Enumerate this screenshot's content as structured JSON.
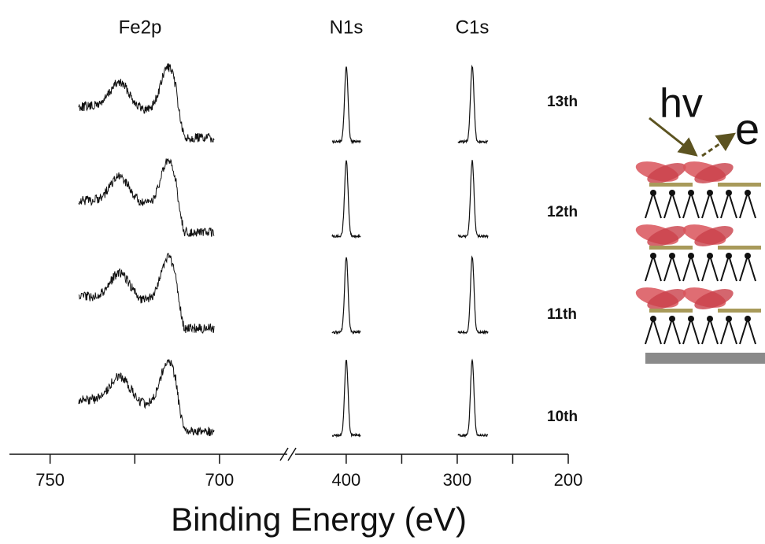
{
  "chart_data": {
    "type": "xps-spectra",
    "xlabel": "Binding Energy (eV)",
    "regions": [
      "Fe2p",
      "N1s",
      "C1s"
    ],
    "samples": [
      "13th",
      "12th",
      "11th",
      "10th"
    ],
    "axes": [
      {
        "xlim": [
          762,
          680
        ],
        "xticks": [
          750,
          700
        ],
        "minor_xticks": [
          725
        ]
      },
      {
        "xlim": [
          446,
          200
        ],
        "xticks": [
          400,
          300,
          200
        ],
        "minor_xticks": [
          350,
          250
        ]
      }
    ],
    "color": "#111111"
  },
  "schematic": {
    "photon": "hv",
    "electron": "e"
  }
}
